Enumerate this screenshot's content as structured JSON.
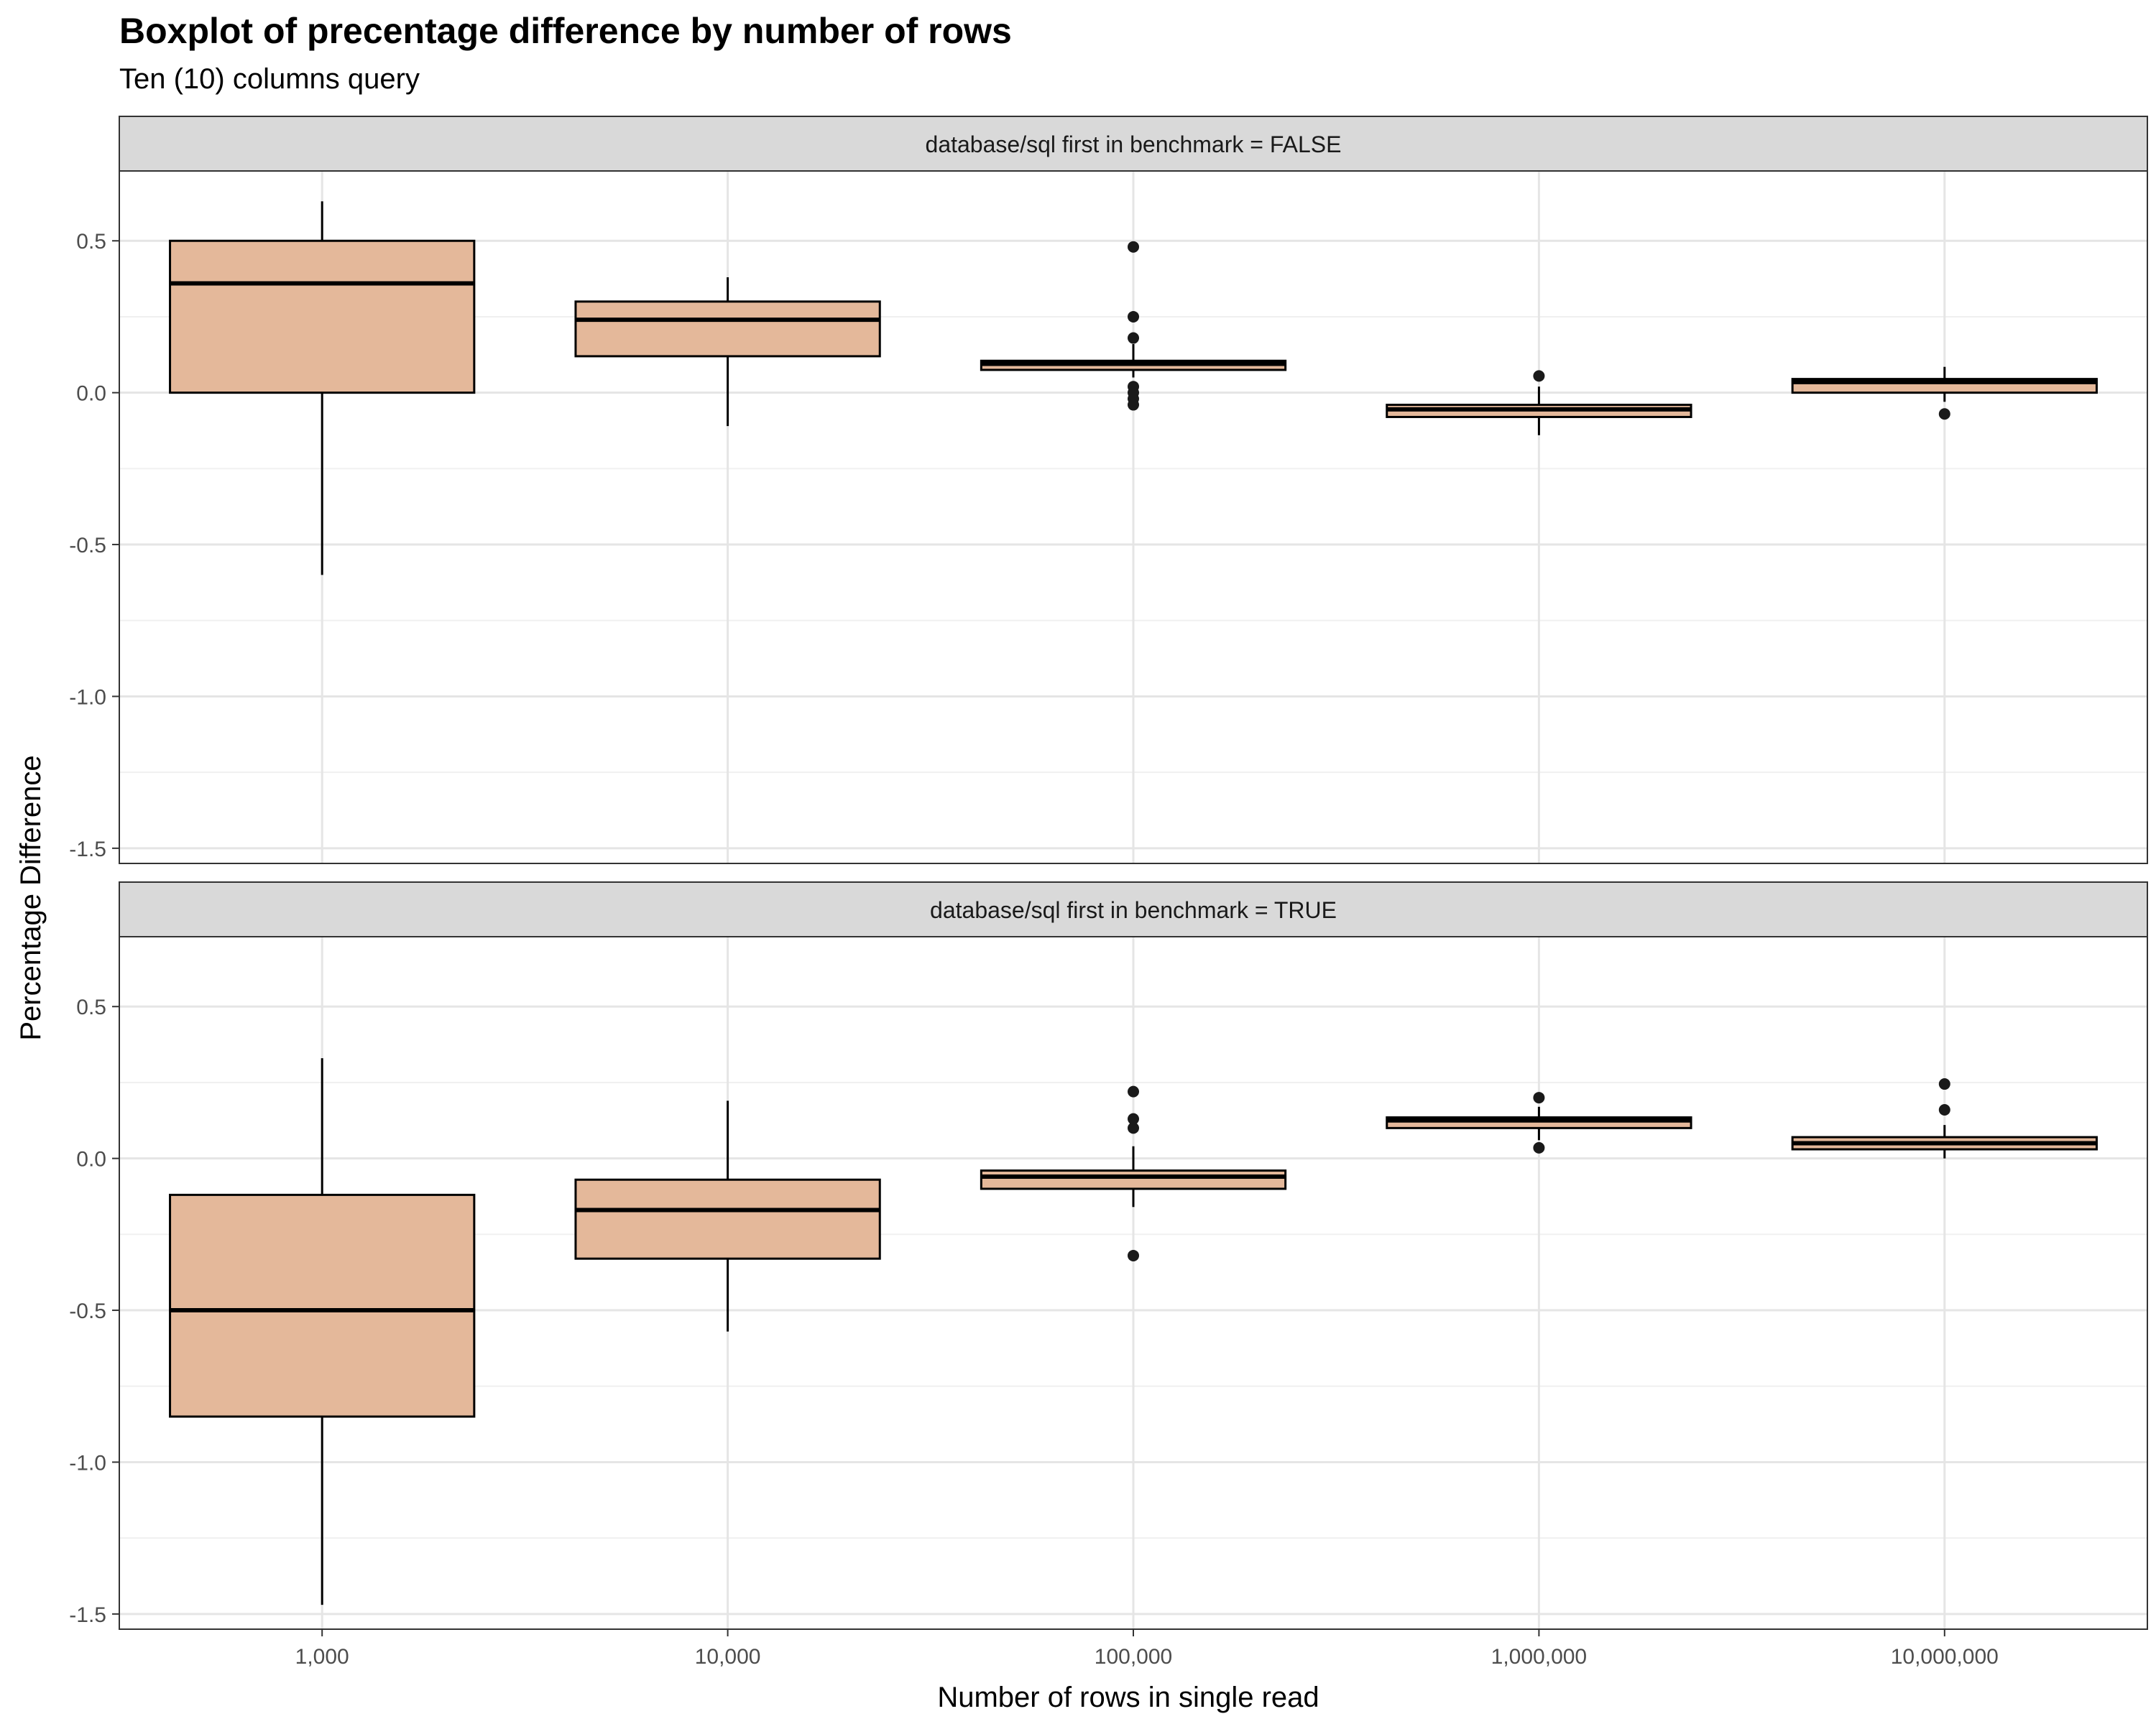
{
  "chart_data": {
    "type": "box",
    "title": "Boxplot of precentage difference by number of rows",
    "subtitle": "Ten (10) columns query",
    "xlabel": "Number of rows in single read",
    "ylabel": "Percentage Difference",
    "categories": [
      "1,000",
      "10,000",
      "100,000",
      "1,000,000",
      "10,000,000"
    ],
    "ylim": [
      -1.55,
      0.73
    ],
    "yticks": [
      0.5,
      0.0,
      -0.5,
      -1.0,
      -1.5
    ],
    "ytick_labels": [
      "0.5",
      "0.0",
      "-0.5",
      "-1.0",
      "-1.5"
    ],
    "grid": true,
    "box_fill": "#e4b89a",
    "panels": [
      {
        "strip_label": "database/sql first in benchmark = FALSE",
        "boxes": [
          {
            "category": "1,000",
            "whisker_low": -0.6,
            "q1": 0.0,
            "median": 0.36,
            "q3": 0.5,
            "whisker_high": 0.63,
            "outliers": []
          },
          {
            "category": "10,000",
            "whisker_low": -0.11,
            "q1": 0.12,
            "median": 0.24,
            "q3": 0.3,
            "whisker_high": 0.38,
            "outliers": []
          },
          {
            "category": "100,000",
            "whisker_low": 0.05,
            "q1": 0.075,
            "median": 0.095,
            "q3": 0.105,
            "whisker_high": 0.16,
            "outliers": [
              0.48,
              0.25,
              0.18,
              0.02,
              0.0,
              -0.02,
              -0.04
            ]
          },
          {
            "category": "1,000,000",
            "whisker_low": -0.14,
            "q1": -0.08,
            "median": -0.055,
            "q3": -0.04,
            "whisker_high": 0.02,
            "outliers": [
              0.055
            ]
          },
          {
            "category": "10,000,000",
            "whisker_low": -0.03,
            "q1": 0.0,
            "median": 0.035,
            "q3": 0.045,
            "whisker_high": 0.085,
            "outliers": [
              -0.07
            ]
          }
        ]
      },
      {
        "strip_label": "database/sql first in benchmark = TRUE",
        "boxes": [
          {
            "category": "1,000",
            "whisker_low": -1.47,
            "q1": -0.85,
            "median": -0.5,
            "q3": -0.12,
            "whisker_high": 0.33,
            "outliers": []
          },
          {
            "category": "10,000",
            "whisker_low": -0.57,
            "q1": -0.33,
            "median": -0.17,
            "q3": -0.07,
            "whisker_high": 0.19,
            "outliers": []
          },
          {
            "category": "100,000",
            "whisker_low": -0.16,
            "q1": -0.1,
            "median": -0.06,
            "q3": -0.04,
            "whisker_high": 0.04,
            "outliers": [
              0.22,
              0.13,
              0.1,
              -0.32
            ]
          },
          {
            "category": "1,000,000",
            "whisker_low": 0.06,
            "q1": 0.1,
            "median": 0.125,
            "q3": 0.135,
            "whisker_high": 0.17,
            "outliers": [
              0.2,
              0.035
            ]
          },
          {
            "category": "10,000,000",
            "whisker_low": 0.0,
            "q1": 0.03,
            "median": 0.05,
            "q3": 0.07,
            "whisker_high": 0.11,
            "outliers": [
              0.245,
              0.16
            ]
          }
        ]
      }
    ]
  }
}
